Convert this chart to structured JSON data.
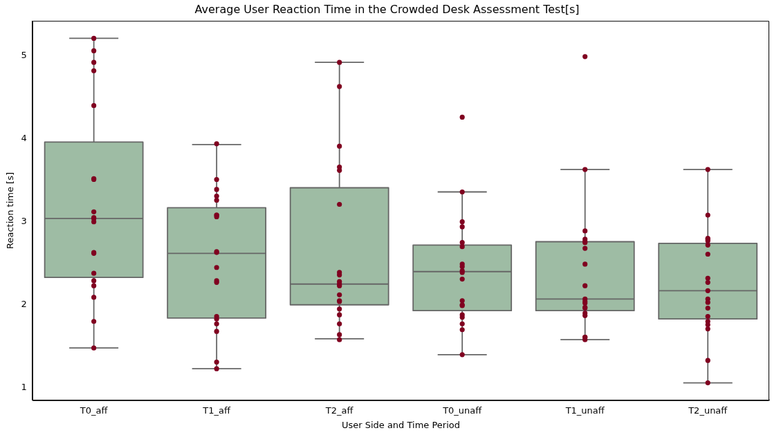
{
  "chart_data": {
    "type": "box",
    "title": "Average User Reaction Time in the Crowded Desk Assessment Test[s]",
    "xlabel": "User Side and Time Period",
    "ylabel": "Reaction time [s]",
    "categories": [
      "T0_aff",
      "T1_aff",
      "T2_aff",
      "T0_unaff",
      "T1_unaff",
      "T2_unaff"
    ],
    "ylim": [
      0.85,
      5.42
    ],
    "yticks": [
      1,
      2,
      3,
      4,
      5
    ],
    "grid": false,
    "legend": false,
    "series": [
      {
        "type": "box",
        "color": "#9ebca4",
        "boxes": [
          {
            "low": 1.48,
            "q1": 2.33,
            "median": 3.04,
            "q3": 3.96,
            "high": 5.21
          },
          {
            "low": 1.23,
            "q1": 1.84,
            "median": 2.62,
            "q3": 3.17,
            "high": 3.93
          },
          {
            "low": 1.59,
            "q1": 2.0,
            "median": 2.25,
            "q3": 3.41,
            "high": 4.92
          },
          {
            "low": 1.4,
            "q1": 1.93,
            "median": 2.4,
            "q3": 2.72,
            "high": 3.36
          },
          {
            "low": 1.58,
            "q1": 1.93,
            "median": 2.07,
            "q3": 2.76,
            "high": 3.63
          },
          {
            "low": 1.06,
            "q1": 1.83,
            "median": 2.17,
            "q3": 2.74,
            "high": 3.63
          }
        ]
      },
      {
        "type": "scatter",
        "color": "#800020",
        "marker": "circle",
        "x": [
          "T0_aff",
          "T0_aff",
          "T0_aff",
          "T0_aff",
          "T0_aff",
          "T0_aff",
          "T0_aff",
          "T0_aff",
          "T0_aff",
          "T0_aff",
          "T0_aff",
          "T0_aff",
          "T0_aff",
          "T0_aff",
          "T0_aff",
          "T0_aff",
          "T0_aff",
          "T0_aff",
          "T0_aff",
          "T1_aff",
          "T1_aff",
          "T1_aff",
          "T1_aff",
          "T1_aff",
          "T1_aff",
          "T1_aff",
          "T1_aff",
          "T1_aff",
          "T1_aff",
          "T1_aff",
          "T1_aff",
          "T1_aff",
          "T1_aff",
          "T1_aff",
          "T1_aff",
          "T1_aff",
          "T1_aff",
          "T1_aff",
          "T2_aff",
          "T2_aff",
          "T2_aff",
          "T2_aff",
          "T2_aff",
          "T2_aff",
          "T2_aff",
          "T2_aff",
          "T2_aff",
          "T2_aff",
          "T2_aff",
          "T2_aff",
          "T2_aff",
          "T2_aff",
          "T2_aff",
          "T2_aff",
          "T2_aff",
          "T2_aff",
          "T2_aff",
          "T0_unaff",
          "T0_unaff",
          "T0_unaff",
          "T0_unaff",
          "T0_unaff",
          "T0_unaff",
          "T0_unaff",
          "T0_unaff",
          "T0_unaff",
          "T0_unaff",
          "T0_unaff",
          "T0_unaff",
          "T0_unaff",
          "T0_unaff",
          "T0_unaff",
          "T0_unaff",
          "T0_unaff",
          "T0_unaff",
          "T0_unaff",
          "T1_unaff",
          "T1_unaff",
          "T1_unaff",
          "T1_unaff",
          "T1_unaff",
          "T1_unaff",
          "T1_unaff",
          "T1_unaff",
          "T1_unaff",
          "T1_unaff",
          "T1_unaff",
          "T1_unaff",
          "T1_unaff",
          "T1_unaff",
          "T1_unaff",
          "T1_unaff",
          "T1_unaff",
          "T1_unaff",
          "T1_unaff",
          "T2_unaff",
          "T2_unaff",
          "T2_unaff",
          "T2_unaff",
          "T2_unaff",
          "T2_unaff",
          "T2_unaff",
          "T2_unaff",
          "T2_unaff",
          "T2_unaff",
          "T2_unaff",
          "T2_unaff",
          "T2_unaff",
          "T2_unaff",
          "T2_unaff",
          "T2_unaff",
          "T2_unaff",
          "T2_unaff",
          "T2_unaff"
        ],
        "values": [
          5.21,
          5.06,
          4.92,
          4.82,
          4.4,
          3.52,
          3.51,
          3.12,
          3.05,
          3.04,
          3.0,
          2.63,
          2.62,
          2.38,
          2.29,
          2.23,
          2.09,
          1.8,
          1.48,
          3.94,
          3.51,
          3.39,
          3.31,
          3.26,
          3.08,
          3.06,
          3.08,
          2.64,
          2.63,
          2.45,
          2.29,
          2.27,
          1.86,
          1.83,
          1.77,
          1.68,
          1.31,
          1.23,
          4.92,
          4.63,
          3.91,
          3.66,
          3.62,
          3.21,
          2.39,
          2.36,
          2.28,
          2.25,
          2.23,
          2.12,
          2.05,
          2.04,
          1.95,
          1.88,
          1.77,
          1.64,
          1.58,
          4.26,
          3.36,
          3.0,
          2.94,
          2.75,
          2.7,
          2.49,
          2.46,
          2.41,
          2.39,
          2.31,
          2.05,
          2.0,
          1.99,
          1.88,
          1.85,
          1.77,
          1.7,
          1.4,
          4.99,
          3.63,
          2.89,
          2.79,
          2.76,
          2.75,
          2.68,
          2.49,
          2.23,
          2.07,
          2.04,
          2.02,
          1.97,
          1.96,
          1.9,
          1.87,
          1.61,
          1.61,
          1.58,
          3.63,
          3.08,
          2.8,
          2.79,
          2.77,
          2.72,
          2.61,
          2.32,
          2.27,
          2.17,
          2.07,
          2.03,
          1.96,
          1.86,
          1.8,
          1.76,
          1.71,
          1.33,
          1.06
        ]
      }
    ]
  }
}
